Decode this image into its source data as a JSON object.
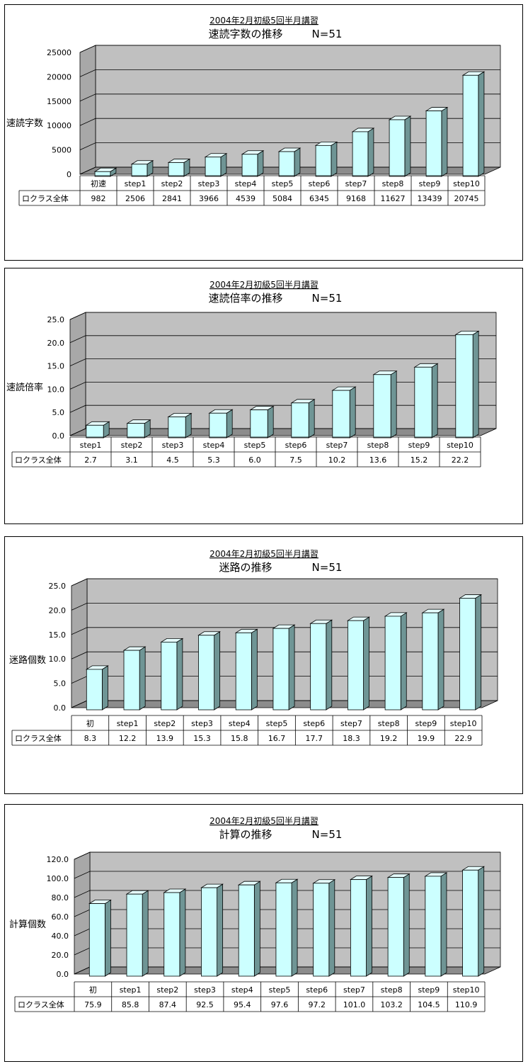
{
  "chart_data": [
    {
      "type": "bar",
      "title": "2004年2月初級5回半月講習",
      "subtitle": "速読字数の推移",
      "n_label": "N=51",
      "ylabel": "速読字数",
      "ylim": [
        0,
        25000
      ],
      "yticks": [
        "0",
        "5000",
        "10000",
        "15000",
        "20000",
        "25000"
      ],
      "categories": [
        "初速",
        "step1",
        "step2",
        "step3",
        "step4",
        "step5",
        "step6",
        "step7",
        "step8",
        "step9",
        "step10"
      ],
      "series": [
        {
          "name": "ロクラス全体",
          "values": [
            982,
            2506,
            2841,
            3966,
            4539,
            5084,
            6345,
            9168,
            11627,
            13439,
            20745
          ],
          "labels": [
            "982",
            "2506",
            "2841",
            "3966",
            "4539",
            "5084",
            "6345",
            "9168",
            "11627",
            "13439",
            "20745"
          ]
        }
      ],
      "grid": true,
      "legend": "table-below"
    },
    {
      "type": "bar",
      "title": "2004年2月初級5回半月講習",
      "subtitle": "速読倍率の推移",
      "n_label": "N=51",
      "ylabel": "速読倍率",
      "ylim": [
        0,
        25
      ],
      "yticks": [
        "0.0",
        "5.0",
        "10.0",
        "15.0",
        "20.0",
        "25.0"
      ],
      "categories": [
        "step1",
        "step2",
        "step3",
        "step4",
        "step5",
        "step6",
        "step7",
        "step8",
        "step9",
        "step10"
      ],
      "series": [
        {
          "name": "ロクラス全体",
          "values": [
            2.7,
            3.1,
            4.5,
            5.3,
            6.0,
            7.5,
            10.2,
            13.6,
            15.2,
            22.2
          ],
          "labels": [
            "2.7",
            "3.1",
            "4.5",
            "5.3",
            "6.0",
            "7.5",
            "10.2",
            "13.6",
            "15.2",
            "22.2"
          ]
        }
      ],
      "grid": true,
      "legend": "table-below"
    },
    {
      "type": "bar",
      "title": "2004年2月初級5回半月講習",
      "subtitle": "迷路の推移",
      "n_label": "N=51",
      "ylabel": "迷路個数",
      "ylim": [
        0,
        25
      ],
      "yticks": [
        "0.0",
        "5.0",
        "10.0",
        "15.0",
        "20.0",
        "25.0"
      ],
      "categories": [
        "初",
        "step1",
        "step2",
        "step3",
        "step4",
        "step5",
        "step6",
        "step7",
        "step8",
        "step9",
        "step10"
      ],
      "series": [
        {
          "name": "ロクラス全体",
          "values": [
            8.3,
            12.2,
            13.9,
            15.3,
            15.8,
            16.7,
            17.7,
            18.3,
            19.2,
            19.9,
            22.9
          ],
          "labels": [
            "8.3",
            "12.2",
            "13.9",
            "15.3",
            "15.8",
            "16.7",
            "17.7",
            "18.3",
            "19.2",
            "19.9",
            "22.9"
          ]
        }
      ],
      "grid": true,
      "legend": "table-below"
    },
    {
      "type": "bar",
      "title": "2004年2月初級5回半月講習",
      "subtitle": "計算の推移",
      "n_label": "N=51",
      "ylabel": "計算個数",
      "ylim": [
        0,
        120
      ],
      "yticks": [
        "0.0",
        "20.0",
        "40.0",
        "60.0",
        "80.0",
        "100.0",
        "120.0"
      ],
      "categories": [
        "初",
        "step1",
        "step2",
        "step3",
        "step4",
        "step5",
        "step6",
        "step7",
        "step8",
        "step9",
        "step10"
      ],
      "series": [
        {
          "name": "ロクラス全体",
          "values": [
            75.9,
            85.8,
            87.4,
            92.5,
            95.4,
            97.6,
            97.2,
            101.0,
            103.2,
            104.5,
            110.9
          ],
          "labels": [
            "75.9",
            "85.8",
            "87.4",
            "92.5",
            "95.4",
            "97.6",
            "97.2",
            "101.0",
            "103.2",
            "104.5",
            "110.9"
          ]
        }
      ],
      "grid": true,
      "legend": "table-below"
    }
  ],
  "colors": {
    "bar_front": "#ccffff",
    "bar_side": "#6f9595",
    "bar_top": "#e6ffff",
    "plot_back": "#c0c0c0",
    "plot_floor": "#8c8c8c",
    "plot_wall": "#a8a8a8"
  }
}
